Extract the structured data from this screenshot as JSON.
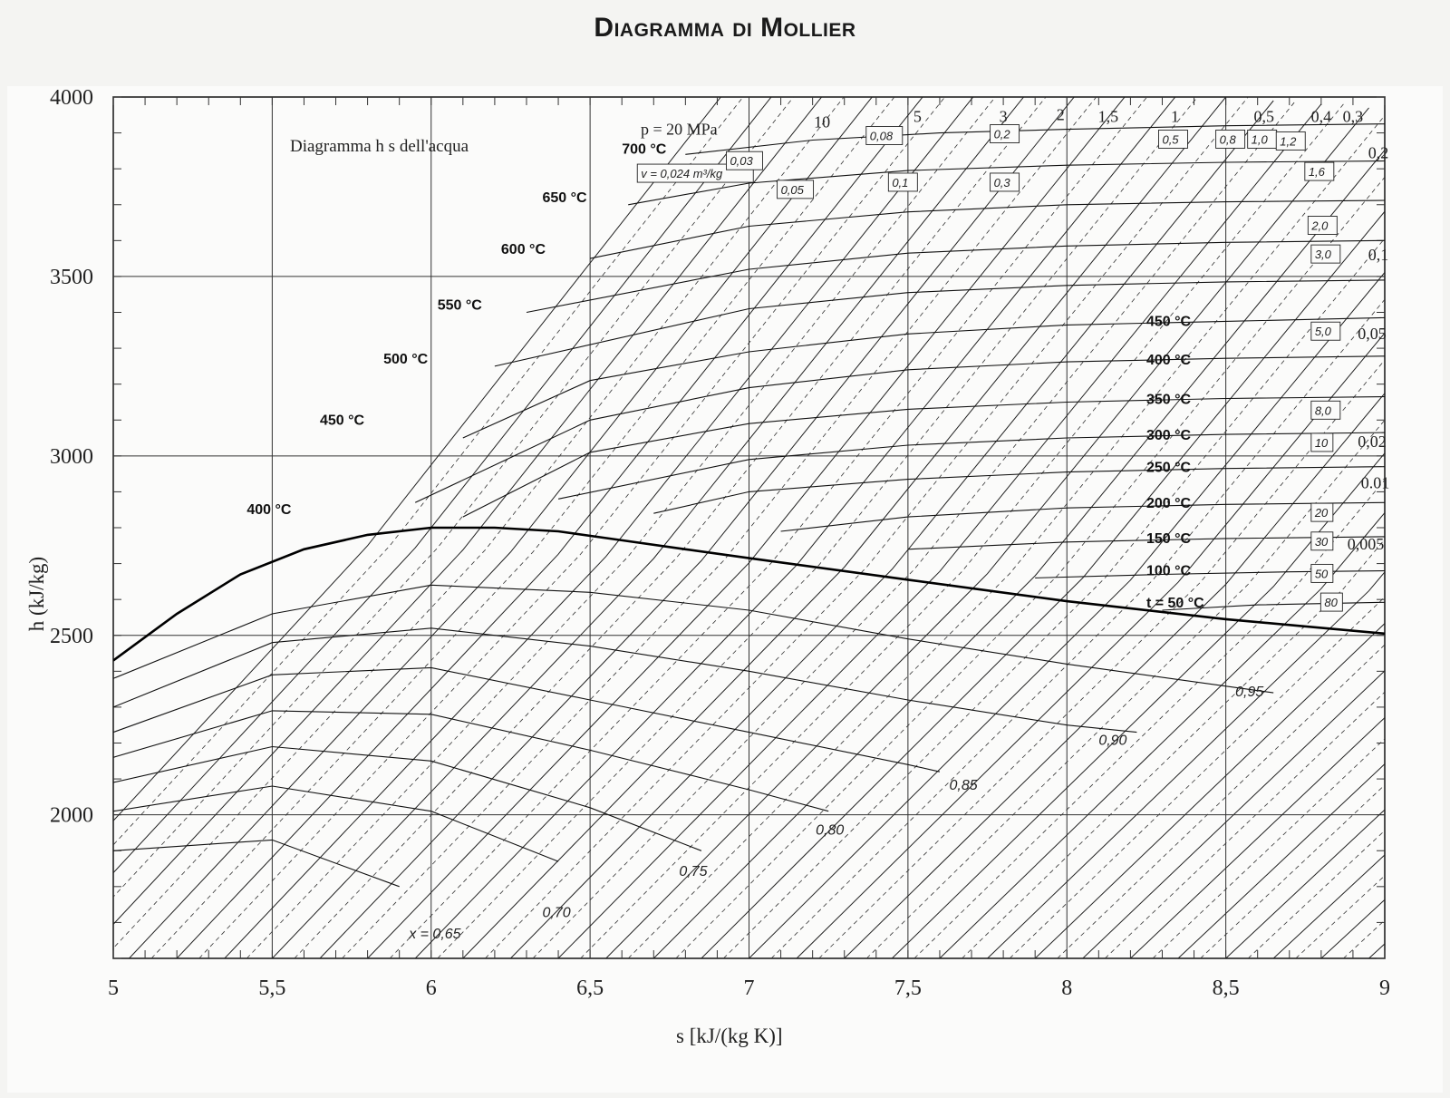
{
  "title": "Diagramma di Mollier",
  "chart_data": {
    "type": "line",
    "subtitle": "Diagramma h s dell'acqua",
    "xlabel": "s  [kJ/(kg K)]",
    "ylabel": "h  (kJ/kg)",
    "xlim": [
      5,
      9
    ],
    "ylim": [
      1600,
      4000
    ],
    "x_ticks": [
      "5",
      "5,5",
      "6",
      "6,5",
      "7",
      "7,5",
      "8",
      "8,5",
      "9"
    ],
    "y_ticks": [
      "2000",
      "2500",
      "3000",
      "3500",
      "4000"
    ],
    "grid": true,
    "saturation_curve": {
      "s": [
        5.0,
        5.2,
        5.4,
        5.6,
        5.8,
        6.0,
        6.2,
        6.4,
        6.6,
        6.8,
        7.0,
        7.5,
        8.0,
        8.5,
        9.0
      ],
      "h": [
        2430,
        2560,
        2670,
        2740,
        2780,
        2800,
        2800,
        2790,
        2765,
        2740,
        2715,
        2655,
        2595,
        2545,
        2505
      ]
    },
    "pressure_labels": [
      {
        "text": "p = 20 MPa",
        "s": 6.78,
        "h": 3895
      },
      {
        "text": "10",
        "s": 7.23,
        "h": 3915
      },
      {
        "text": "5",
        "s": 7.53,
        "h": 3930
      },
      {
        "text": "3",
        "s": 7.8,
        "h": 3930
      },
      {
        "text": "2",
        "s": 7.98,
        "h": 3935
      },
      {
        "text": "1,5",
        "s": 8.13,
        "h": 3930
      },
      {
        "text": "1",
        "s": 8.34,
        "h": 3930
      },
      {
        "text": "0,5",
        "s": 8.62,
        "h": 3930
      },
      {
        "text": "0,4",
        "s": 8.8,
        "h": 3930
      },
      {
        "text": "0,3",
        "s": 8.9,
        "h": 3930
      },
      {
        "text": "0,2",
        "s": 8.98,
        "h": 3830
      },
      {
        "text": "0,1",
        "s": 8.98,
        "h": 3545
      },
      {
        "text": "0,05",
        "s": 8.96,
        "h": 3325
      },
      {
        "text": "0,02",
        "s": 8.96,
        "h": 3025
      },
      {
        "text": "0.01",
        "s": 8.97,
        "h": 2910
      },
      {
        "text": "0,005",
        "s": 8.94,
        "h": 2740
      }
    ],
    "temperature_lines": [
      {
        "label": "700 °C",
        "s": [
          6.8,
          7.2,
          7.6,
          8.0,
          8.5,
          9.0
        ],
        "h": [
          3840,
          3880,
          3900,
          3910,
          3920,
          3925
        ]
      },
      {
        "label": "650 °C",
        "s": [
          6.62,
          7.0,
          7.5,
          8.0,
          8.5,
          9.0
        ],
        "h": [
          3700,
          3760,
          3795,
          3810,
          3818,
          3822
        ]
      },
      {
        "label": "600 °C",
        "s": [
          6.5,
          7.0,
          7.5,
          8.0,
          8.5,
          9.0
        ],
        "h": [
          3550,
          3640,
          3680,
          3700,
          3708,
          3712
        ]
      },
      {
        "label": "550 °C",
        "s": [
          6.3,
          7.0,
          7.5,
          8.0,
          8.5,
          9.0
        ],
        "h": [
          3400,
          3520,
          3565,
          3585,
          3595,
          3600
        ]
      },
      {
        "label": "500 °C",
        "s": [
          6.2,
          7.0,
          7.5,
          8.0,
          8.5,
          9.0
        ],
        "h": [
          3250,
          3410,
          3455,
          3475,
          3485,
          3490
        ]
      },
      {
        "label": "450 °C",
        "s": [
          6.1,
          6.5,
          7.0,
          7.5,
          8.0,
          8.5,
          9.0
        ],
        "h": [
          3050,
          3210,
          3290,
          3340,
          3365,
          3375,
          3385
        ]
      },
      {
        "label": "400 °C",
        "s": [
          5.95,
          6.5,
          7.0,
          7.5,
          8.0,
          8.5,
          9.0
        ],
        "h": [
          2870,
          3100,
          3190,
          3240,
          3262,
          3272,
          3278
        ]
      },
      {
        "label": "350 °C",
        "s": [
          6.1,
          6.5,
          7.0,
          7.5,
          8.0,
          8.5,
          9.0
        ],
        "h": [
          2830,
          3010,
          3090,
          3130,
          3150,
          3160,
          3165
        ]
      },
      {
        "label": "300 °C",
        "s": [
          6.4,
          7.0,
          7.5,
          8.0,
          8.5,
          9.0
        ],
        "h": [
          2880,
          2990,
          3030,
          3050,
          3060,
          3065
        ]
      },
      {
        "label": "250 °C",
        "s": [
          6.7,
          7.0,
          7.5,
          8.0,
          8.5,
          9.0
        ],
        "h": [
          2840,
          2900,
          2935,
          2955,
          2965,
          2970
        ]
      },
      {
        "label": "200 °C",
        "s": [
          7.1,
          7.5,
          8.0,
          8.5,
          9.0
        ],
        "h": [
          2790,
          2830,
          2855,
          2865,
          2870
        ]
      },
      {
        "label": "150 °C",
        "s": [
          7.5,
          8.0,
          8.5,
          9.0
        ],
        "h": [
          2740,
          2760,
          2770,
          2775
        ]
      },
      {
        "label": "100 °C",
        "s": [
          7.9,
          8.3,
          8.7,
          9.0
        ],
        "h": [
          2660,
          2670,
          2677,
          2680
        ]
      },
      {
        "label": "t = 50 °C",
        "s": [
          8.3,
          8.6,
          9.0
        ],
        "h": [
          2570,
          2585,
          2592
        ]
      }
    ],
    "quality_lines": [
      {
        "label": "0,95",
        "s": [
          5.0,
          5.5,
          6.0,
          6.5,
          7.0,
          7.5,
          8.0,
          8.65
        ],
        "h": [
          2380,
          2560,
          2640,
          2620,
          2570,
          2490,
          2420,
          2340
        ]
      },
      {
        "label": "0,90",
        "s": [
          5.0,
          5.5,
          6.0,
          6.5,
          7.0,
          7.5,
          8.0,
          8.22
        ],
        "h": [
          2300,
          2480,
          2520,
          2470,
          2400,
          2320,
          2250,
          2230
        ]
      },
      {
        "label": "0,85",
        "s": [
          5.0,
          5.5,
          6.0,
          6.5,
          7.0,
          7.5,
          7.6
        ],
        "h": [
          2230,
          2390,
          2410,
          2320,
          2230,
          2140,
          2120
        ]
      },
      {
        "label": "0,80",
        "s": [
          5.0,
          5.5,
          6.0,
          6.5,
          7.0,
          7.25
        ],
        "h": [
          2160,
          2290,
          2280,
          2180,
          2070,
          2010
        ]
      },
      {
        "label": "0,75",
        "s": [
          5.0,
          5.5,
          6.0,
          6.5,
          6.85
        ],
        "h": [
          2090,
          2190,
          2150,
          2020,
          1900
        ]
      },
      {
        "label": "0,70",
        "s": [
          5.0,
          5.5,
          6.0,
          6.4
        ],
        "h": [
          2010,
          2080,
          2010,
          1870
        ]
      },
      {
        "label": "x = 0,65",
        "s": [
          5.0,
          5.5,
          5.9
        ],
        "h": [
          1900,
          1930,
          1800
        ]
      }
    ],
    "volume_labels": [
      "v = 0,024 m³/kg",
      "0,03",
      "0,05",
      "0,08",
      "0,1",
      "0,2",
      "0,3",
      "0,5",
      "0,8",
      "1,0",
      "1,2",
      "1,6",
      "2,0",
      "3,0",
      "5,0",
      "8,0",
      "10",
      "20",
      "30",
      "50",
      "80"
    ]
  }
}
